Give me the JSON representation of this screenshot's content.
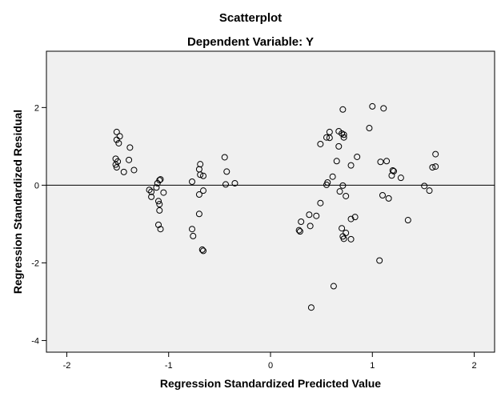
{
  "chart_data": {
    "type": "scatter",
    "title": "Scatterplot",
    "subtitle": "Dependent Variable: Y",
    "xlabel": "Regression Standardized Predicted Value",
    "ylabel": "Regression Standardized Residual",
    "xlim": [
      -2.2,
      2.2
    ],
    "ylim": [
      -4.3,
      3.45
    ],
    "xticks": [
      -2,
      -1,
      0,
      1,
      2
    ],
    "yticks": [
      2,
      0,
      -2,
      -4
    ],
    "reference_line_y": 0,
    "grid": false,
    "colors": {
      "plot_background": "#f0f0f0",
      "marker_stroke": "#000000",
      "reference_line": "#000000"
    },
    "points": [
      {
        "x": -1.51,
        "y": 1.37
      },
      {
        "x": -1.48,
        "y": 1.26
      },
      {
        "x": -1.51,
        "y": 1.17
      },
      {
        "x": -1.49,
        "y": 1.08
      },
      {
        "x": -1.38,
        "y": 0.97
      },
      {
        "x": -1.52,
        "y": 0.68
      },
      {
        "x": -1.39,
        "y": 0.65
      },
      {
        "x": -1.5,
        "y": 0.61
      },
      {
        "x": -1.52,
        "y": 0.53
      },
      {
        "x": -1.51,
        "y": 0.46
      },
      {
        "x": -1.34,
        "y": 0.39
      },
      {
        "x": -1.44,
        "y": 0.34
      },
      {
        "x": -1.08,
        "y": 0.15
      },
      {
        "x": -1.09,
        "y": 0.13
      },
      {
        "x": -1.11,
        "y": 0.05
      },
      {
        "x": -1.12,
        "y": -0.06
      },
      {
        "x": -1.19,
        "y": -0.12
      },
      {
        "x": -1.17,
        "y": -0.17
      },
      {
        "x": -1.05,
        "y": -0.19
      },
      {
        "x": -1.17,
        "y": -0.3
      },
      {
        "x": -1.1,
        "y": -0.41
      },
      {
        "x": -1.09,
        "y": -0.49
      },
      {
        "x": -1.09,
        "y": -0.65
      },
      {
        "x": -1.1,
        "y": -1.02
      },
      {
        "x": -1.08,
        "y": -1.13
      },
      {
        "x": -0.69,
        "y": 0.54
      },
      {
        "x": -0.7,
        "y": 0.41
      },
      {
        "x": -0.69,
        "y": 0.27
      },
      {
        "x": -0.66,
        "y": 0.24
      },
      {
        "x": -0.77,
        "y": 0.09
      },
      {
        "x": -0.66,
        "y": -0.14
      },
      {
        "x": -0.7,
        "y": -0.24
      },
      {
        "x": -0.7,
        "y": -0.74
      },
      {
        "x": -0.77,
        "y": -1.13
      },
      {
        "x": -0.76,
        "y": -1.31
      },
      {
        "x": -0.67,
        "y": -1.66
      },
      {
        "x": -0.66,
        "y": -1.69
      },
      {
        "x": -0.45,
        "y": 0.72
      },
      {
        "x": -0.43,
        "y": 0.35
      },
      {
        "x": -0.35,
        "y": 0.05
      },
      {
        "x": -0.44,
        "y": 0.02
      },
      {
        "x": 0.71,
        "y": 1.95
      },
      {
        "x": 1.0,
        "y": 2.03
      },
      {
        "x": 1.11,
        "y": 1.98
      },
      {
        "x": 0.97,
        "y": 1.47
      },
      {
        "x": 0.67,
        "y": 1.39
      },
      {
        "x": 0.58,
        "y": 1.37
      },
      {
        "x": 0.7,
        "y": 1.33
      },
      {
        "x": 0.72,
        "y": 1.3
      },
      {
        "x": 0.55,
        "y": 1.23
      },
      {
        "x": 0.58,
        "y": 1.22
      },
      {
        "x": 0.72,
        "y": 1.23
      },
      {
        "x": 0.49,
        "y": 1.06
      },
      {
        "x": 0.67,
        "y": 1.0
      },
      {
        "x": 0.85,
        "y": 0.73
      },
      {
        "x": 0.65,
        "y": 0.62
      },
      {
        "x": 1.08,
        "y": 0.6
      },
      {
        "x": 1.14,
        "y": 0.62
      },
      {
        "x": 0.79,
        "y": 0.51
      },
      {
        "x": 1.2,
        "y": 0.38
      },
      {
        "x": 1.21,
        "y": 0.36
      },
      {
        "x": 1.19,
        "y": 0.25
      },
      {
        "x": 1.28,
        "y": 0.19
      },
      {
        "x": 1.62,
        "y": 0.8
      },
      {
        "x": 1.59,
        "y": 0.46
      },
      {
        "x": 1.62,
        "y": 0.48
      },
      {
        "x": 0.61,
        "y": 0.22
      },
      {
        "x": 0.56,
        "y": 0.07
      },
      {
        "x": 0.55,
        "y": 0.01
      },
      {
        "x": 0.71,
        "y": -0.01
      },
      {
        "x": 0.68,
        "y": -0.16
      },
      {
        "x": 0.74,
        "y": -0.28
      },
      {
        "x": 1.1,
        "y": -0.26
      },
      {
        "x": 1.16,
        "y": -0.34
      },
      {
        "x": 1.51,
        "y": -0.02
      },
      {
        "x": 1.56,
        "y": -0.14
      },
      {
        "x": 0.49,
        "y": -0.46
      },
      {
        "x": 0.3,
        "y": -0.94
      },
      {
        "x": 0.38,
        "y": -0.76
      },
      {
        "x": 0.45,
        "y": -0.79
      },
      {
        "x": 0.39,
        "y": -1.05
      },
      {
        "x": 0.28,
        "y": -1.16
      },
      {
        "x": 0.29,
        "y": -1.19
      },
      {
        "x": 0.83,
        "y": -0.82
      },
      {
        "x": 0.79,
        "y": -0.87
      },
      {
        "x": 0.7,
        "y": -1.11
      },
      {
        "x": 0.74,
        "y": -1.23
      },
      {
        "x": 0.71,
        "y": -1.32
      },
      {
        "x": 0.72,
        "y": -1.38
      },
      {
        "x": 0.79,
        "y": -1.39
      },
      {
        "x": 1.07,
        "y": -1.94
      },
      {
        "x": 1.35,
        "y": -0.9
      },
      {
        "x": 0.62,
        "y": -2.6
      },
      {
        "x": 0.4,
        "y": -3.15
      }
    ]
  }
}
